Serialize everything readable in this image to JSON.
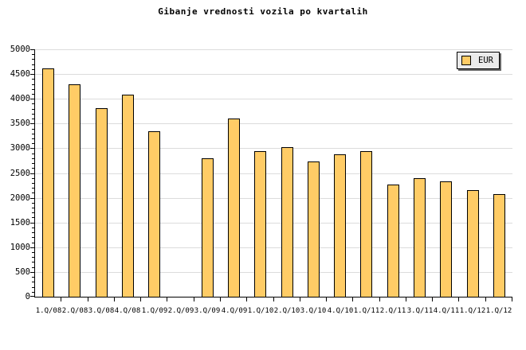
{
  "title": "Gibanje vrednosti vozila po kvartalih",
  "legend": {
    "items": [
      {
        "label": "EUR",
        "color": "#FFCC66"
      }
    ]
  },
  "colors": {
    "background": "#FFFFFF",
    "bar_fill": "#FFCC66",
    "bar_border": "#000000",
    "grid": "#DCDCDC",
    "axis": "#000000",
    "tick": "#000000",
    "legend_bg": "#EBEBEB",
    "legend_shadow": "#666666",
    "text": "#000000"
  },
  "chart_data": {
    "type": "bar",
    "title": "Gibanje vrednosti vozila po kvartalih",
    "categories": [
      "1.Q/08",
      "2.Q/08",
      "3.Q/08",
      "4.Q/08",
      "1.Q/09",
      "2.Q/09",
      "3.Q/09",
      "4.Q/09",
      "1.Q/10",
      "2.Q/10",
      "3.Q/10",
      "4.Q/10",
      "1.Q/11",
      "2.Q/11",
      "3.Q/11",
      "4.Q/11",
      "1.Q/12",
      "1.Q/12"
    ],
    "series": [
      {
        "name": "EUR",
        "values": [
          4610,
          4290,
          3810,
          4090,
          3340,
          null,
          2800,
          3600,
          2950,
          3020,
          2740,
          2870,
          2950,
          2260,
          2400,
          2330,
          2150,
          2080
        ]
      }
    ],
    "xlabel": "",
    "ylabel": "",
    "ylim": [
      0,
      5000
    ],
    "yticks": [
      0,
      500,
      1000,
      1500,
      2000,
      2500,
      3000,
      3500,
      4000,
      4500,
      5000
    ],
    "ytick_step": 500,
    "minor_tick_step": 100,
    "grid": true,
    "legend_position": "top-right",
    "missing_categories": [
      "2.Q/09"
    ]
  }
}
